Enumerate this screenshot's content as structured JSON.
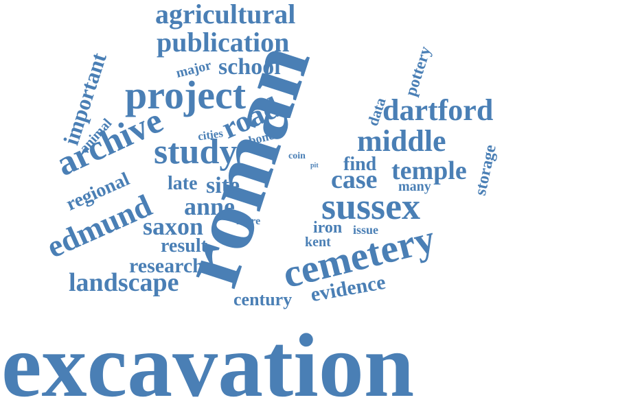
{
  "color": "#4a7fb5",
  "background": "#ffffff",
  "words": {
    "excavation": "excavation",
    "roman": "roman",
    "cemetery": "cemetery",
    "sussex": "sussex",
    "project": "project",
    "study": "study",
    "archive": "archive",
    "edmund": "edmund",
    "agricultural": "agricultural",
    "publication": "publication",
    "school": "school",
    "major": "major",
    "important": "important",
    "road": "road",
    "dartford": "dartford",
    "middle": "middle",
    "temple": "temple",
    "case": "case",
    "site": "site",
    "anne": "anne",
    "saxon": "saxon",
    "landscape": "landscape",
    "research": "research",
    "result": "result",
    "century": "century",
    "evidence": "evidence",
    "regional": "regional",
    "late": "late",
    "animal": "animal",
    "cities": "cities",
    "bone": "bone",
    "coin": "coin",
    "pit": "pit",
    "find": "find",
    "many": "many",
    "storage": "storage",
    "pottery": "pottery",
    "data": "data",
    "iron": "iron",
    "issue": "issue",
    "kent": "kent",
    "more": "more"
  }
}
